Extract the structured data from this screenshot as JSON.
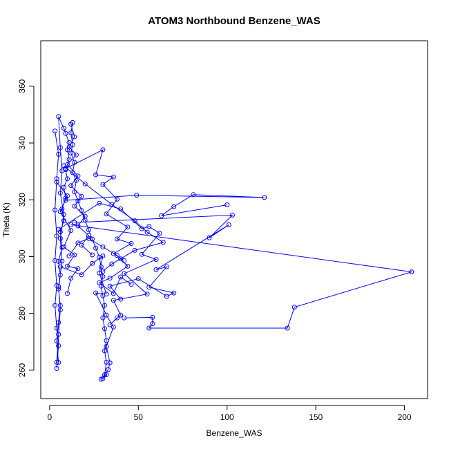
{
  "chart_data": {
    "type": "line",
    "title": "ATOM3 Northbound Benzene_WAS",
    "xlabel": "Benzene_WAS",
    "ylabel": "Theta (K)",
    "xlim": [
      -5,
      213
    ],
    "ylim": [
      250,
      376
    ],
    "x_ticks": [
      0,
      50,
      100,
      150,
      200
    ],
    "y_ticks": [
      260,
      280,
      300,
      320,
      340,
      360
    ],
    "grid": false,
    "legend": "none",
    "marker": "open-circle",
    "color": "#0000ff",
    "series": [
      {
        "values": [
          {
            "x": 5,
            "y": 262.7
          },
          {
            "x": 4,
            "y": 270.3
          },
          {
            "x": 5,
            "y": 276.8
          },
          {
            "x": 6,
            "y": 282.8
          },
          {
            "x": 5,
            "y": 288.6
          },
          {
            "x": 6,
            "y": 293.5
          },
          {
            "x": 5,
            "y": 298.3
          },
          {
            "x": 7,
            "y": 303.2
          },
          {
            "x": 6,
            "y": 308.7
          },
          {
            "x": 8,
            "y": 312.6
          },
          {
            "x": 7,
            "y": 316.8
          },
          {
            "x": 9,
            "y": 320.6
          },
          {
            "x": 8,
            "y": 324.4
          },
          {
            "x": 10,
            "y": 327.4
          },
          {
            "x": 9,
            "y": 330.6
          },
          {
            "x": 11,
            "y": 334.2
          },
          {
            "x": 10,
            "y": 337.6
          },
          {
            "x": 11,
            "y": 340.2
          },
          {
            "x": 9,
            "y": 343.4
          },
          {
            "x": 8,
            "y": 345.2
          },
          {
            "x": 5,
            "y": 349.3
          },
          {
            "x": 6,
            "y": 338.4
          },
          {
            "x": 7,
            "y": 330.2
          },
          {
            "x": 6,
            "y": 322.4
          },
          {
            "x": 8,
            "y": 314.8
          },
          {
            "x": 6,
            "y": 306.4
          },
          {
            "x": 7,
            "y": 298.4
          },
          {
            "x": 5,
            "y": 289.4
          },
          {
            "x": 6,
            "y": 281.2
          },
          {
            "x": 5,
            "y": 272.6
          },
          {
            "x": 4,
            "y": 262.8
          }
        ]
      },
      {
        "values": [
          {
            "x": 13,
            "y": 347.2
          },
          {
            "x": 12,
            "y": 343.6
          },
          {
            "x": 13,
            "y": 339.4
          },
          {
            "x": 12,
            "y": 336.4
          },
          {
            "x": 14,
            "y": 333.2
          },
          {
            "x": 13,
            "y": 329.6
          },
          {
            "x": 15,
            "y": 326.8
          },
          {
            "x": 14,
            "y": 322.8
          },
          {
            "x": 16,
            "y": 319.6
          },
          {
            "x": 18,
            "y": 316.2
          },
          {
            "x": 20,
            "y": 312.8
          },
          {
            "x": 22,
            "y": 309.4
          },
          {
            "x": 24,
            "y": 306.2
          },
          {
            "x": 26,
            "y": 303.0
          },
          {
            "x": 28,
            "y": 299.8
          },
          {
            "x": 29,
            "y": 296.4
          },
          {
            "x": 30,
            "y": 293.0
          },
          {
            "x": 29,
            "y": 289.6
          },
          {
            "x": 30,
            "y": 286.2
          },
          {
            "x": 31,
            "y": 282.8
          },
          {
            "x": 30,
            "y": 278.4
          },
          {
            "x": 31,
            "y": 274.6
          },
          {
            "x": 32,
            "y": 270.4
          },
          {
            "x": 31,
            "y": 266.8
          },
          {
            "x": 32,
            "y": 262.8
          },
          {
            "x": 31,
            "y": 258.4
          },
          {
            "x": 29,
            "y": 256.8
          }
        ]
      },
      {
        "values": [
          {
            "x": 8,
            "y": 332.0
          },
          {
            "x": 20,
            "y": 325.6
          },
          {
            "x": 35,
            "y": 318.4
          },
          {
            "x": 48,
            "y": 312.6
          },
          {
            "x": 55,
            "y": 308.6
          },
          {
            "x": 64,
            "y": 305.0
          },
          {
            "x": 48,
            "y": 302.2
          },
          {
            "x": 40,
            "y": 299.2
          },
          {
            "x": 35,
            "y": 297.4
          },
          {
            "x": 30,
            "y": 294.8
          }
        ]
      },
      {
        "values": [
          {
            "x": 12,
            "y": 311.2
          },
          {
            "x": 204,
            "y": 294.6
          },
          {
            "x": 138,
            "y": 282.2
          },
          {
            "x": 134,
            "y": 274.8
          },
          {
            "x": 56,
            "y": 274.8
          },
          {
            "x": 58,
            "y": 276.4
          },
          {
            "x": 58,
            "y": 278.6
          },
          {
            "x": 42,
            "y": 278.4
          }
        ]
      },
      {
        "values": [
          {
            "x": 9,
            "y": 319.8
          },
          {
            "x": 49,
            "y": 321.6
          },
          {
            "x": 121,
            "y": 320.8
          },
          {
            "x": 81,
            "y": 321.8
          },
          {
            "x": 70,
            "y": 317.6
          },
          {
            "x": 63,
            "y": 314.4
          },
          {
            "x": 100,
            "y": 318.2
          }
        ]
      },
      {
        "values": [
          {
            "x": 14,
            "y": 312.0
          },
          {
            "x": 103,
            "y": 314.6
          },
          {
            "x": 90,
            "y": 306.6
          },
          {
            "x": 101,
            "y": 311.2
          },
          {
            "x": 60,
            "y": 295.4
          },
          {
            "x": 66,
            "y": 296.4
          },
          {
            "x": 56,
            "y": 289.2
          },
          {
            "x": 70,
            "y": 287.2
          },
          {
            "x": 66,
            "y": 286.0
          },
          {
            "x": 50,
            "y": 292.2
          },
          {
            "x": 34,
            "y": 289.6
          },
          {
            "x": 40,
            "y": 285.0
          }
        ]
      },
      {
        "values": [
          {
            "x": 5,
            "y": 309.6
          },
          {
            "x": 28,
            "y": 318.8
          },
          {
            "x": 40,
            "y": 316.8
          },
          {
            "x": 52,
            "y": 309.8
          },
          {
            "x": 56,
            "y": 310.6
          },
          {
            "x": 62,
            "y": 308.2
          },
          {
            "x": 52,
            "y": 300.8
          },
          {
            "x": 60,
            "y": 299.0
          },
          {
            "x": 42,
            "y": 294.0
          },
          {
            "x": 55,
            "y": 286.8
          },
          {
            "x": 36,
            "y": 284.6
          },
          {
            "x": 40,
            "y": 279.4
          },
          {
            "x": 34,
            "y": 276.0
          },
          {
            "x": 38,
            "y": 278.4
          }
        ]
      },
      {
        "values": [
          {
            "x": 3,
            "y": 344.2
          },
          {
            "x": 5,
            "y": 336.0
          },
          {
            "x": 4,
            "y": 327.4
          },
          {
            "x": 3,
            "y": 316.4
          },
          {
            "x": 4,
            "y": 307.2
          },
          {
            "x": 3,
            "y": 298.6
          },
          {
            "x": 4,
            "y": 289.8
          },
          {
            "x": 3,
            "y": 282.8
          },
          {
            "x": 4,
            "y": 274.8
          },
          {
            "x": 5,
            "y": 268.6
          },
          {
            "x": 4,
            "y": 260.6
          }
        ]
      },
      {
        "values": [
          {
            "x": 11,
            "y": 300.2
          },
          {
            "x": 16,
            "y": 304.8
          },
          {
            "x": 22,
            "y": 306.4
          },
          {
            "x": 30,
            "y": 303.4
          },
          {
            "x": 38,
            "y": 300.4
          },
          {
            "x": 44,
            "y": 296.6
          },
          {
            "x": 34,
            "y": 292.4
          },
          {
            "x": 28,
            "y": 290.8
          },
          {
            "x": 36,
            "y": 287.0
          },
          {
            "x": 40,
            "y": 292.8
          },
          {
            "x": 46,
            "y": 290.2
          }
        ]
      },
      {
        "values": [
          {
            "x": 9,
            "y": 331.0
          },
          {
            "x": 30,
            "y": 337.6
          },
          {
            "x": 26,
            "y": 328.8
          },
          {
            "x": 36,
            "y": 328.0
          },
          {
            "x": 30,
            "y": 325.4
          },
          {
            "x": 38,
            "y": 320.2
          },
          {
            "x": 32,
            "y": 315.0
          },
          {
            "x": 44,
            "y": 310.4
          },
          {
            "x": 38,
            "y": 306.2
          },
          {
            "x": 46,
            "y": 304.6
          },
          {
            "x": 36,
            "y": 301.0
          },
          {
            "x": 42,
            "y": 298.6
          }
        ]
      },
      {
        "values": [
          {
            "x": 6,
            "y": 296.4
          },
          {
            "x": 18,
            "y": 293.6
          },
          {
            "x": 24,
            "y": 297.6
          },
          {
            "x": 30,
            "y": 300.2
          },
          {
            "x": 28,
            "y": 294.2
          },
          {
            "x": 32,
            "y": 286.8
          },
          {
            "x": 26,
            "y": 287.2
          },
          {
            "x": 32,
            "y": 279.4
          },
          {
            "x": 36,
            "y": 275.2
          },
          {
            "x": 32,
            "y": 268.4
          },
          {
            "x": 34,
            "y": 262.6
          },
          {
            "x": 33,
            "y": 260.2
          },
          {
            "x": 30,
            "y": 257.0
          },
          {
            "x": 32,
            "y": 258.4
          }
        ]
      },
      {
        "values": [
          {
            "x": 4,
            "y": 326.2
          },
          {
            "x": 10,
            "y": 321.4
          },
          {
            "x": 6,
            "y": 315.8
          },
          {
            "x": 12,
            "y": 309.2
          },
          {
            "x": 8,
            "y": 303.4
          },
          {
            "x": 14,
            "y": 300.6
          },
          {
            "x": 10,
            "y": 296.6
          },
          {
            "x": 16,
            "y": 295.8
          },
          {
            "x": 12,
            "y": 292.4
          },
          {
            "x": 10,
            "y": 287.0
          }
        ]
      },
      {
        "values": [
          {
            "x": 12,
            "y": 346.6
          },
          {
            "x": 14,
            "y": 342.2
          },
          {
            "x": 11,
            "y": 338.6
          },
          {
            "x": 15,
            "y": 335.8
          },
          {
            "x": 10,
            "y": 332.4
          },
          {
            "x": 16,
            "y": 328.4
          },
          {
            "x": 12,
            "y": 325.0
          },
          {
            "x": 18,
            "y": 321.2
          },
          {
            "x": 14,
            "y": 317.8
          },
          {
            "x": 20,
            "y": 314.2
          },
          {
            "x": 16,
            "y": 310.8
          },
          {
            "x": 22,
            "y": 307.4
          },
          {
            "x": 18,
            "y": 304.0
          },
          {
            "x": 24,
            "y": 300.6
          }
        ]
      }
    ]
  }
}
